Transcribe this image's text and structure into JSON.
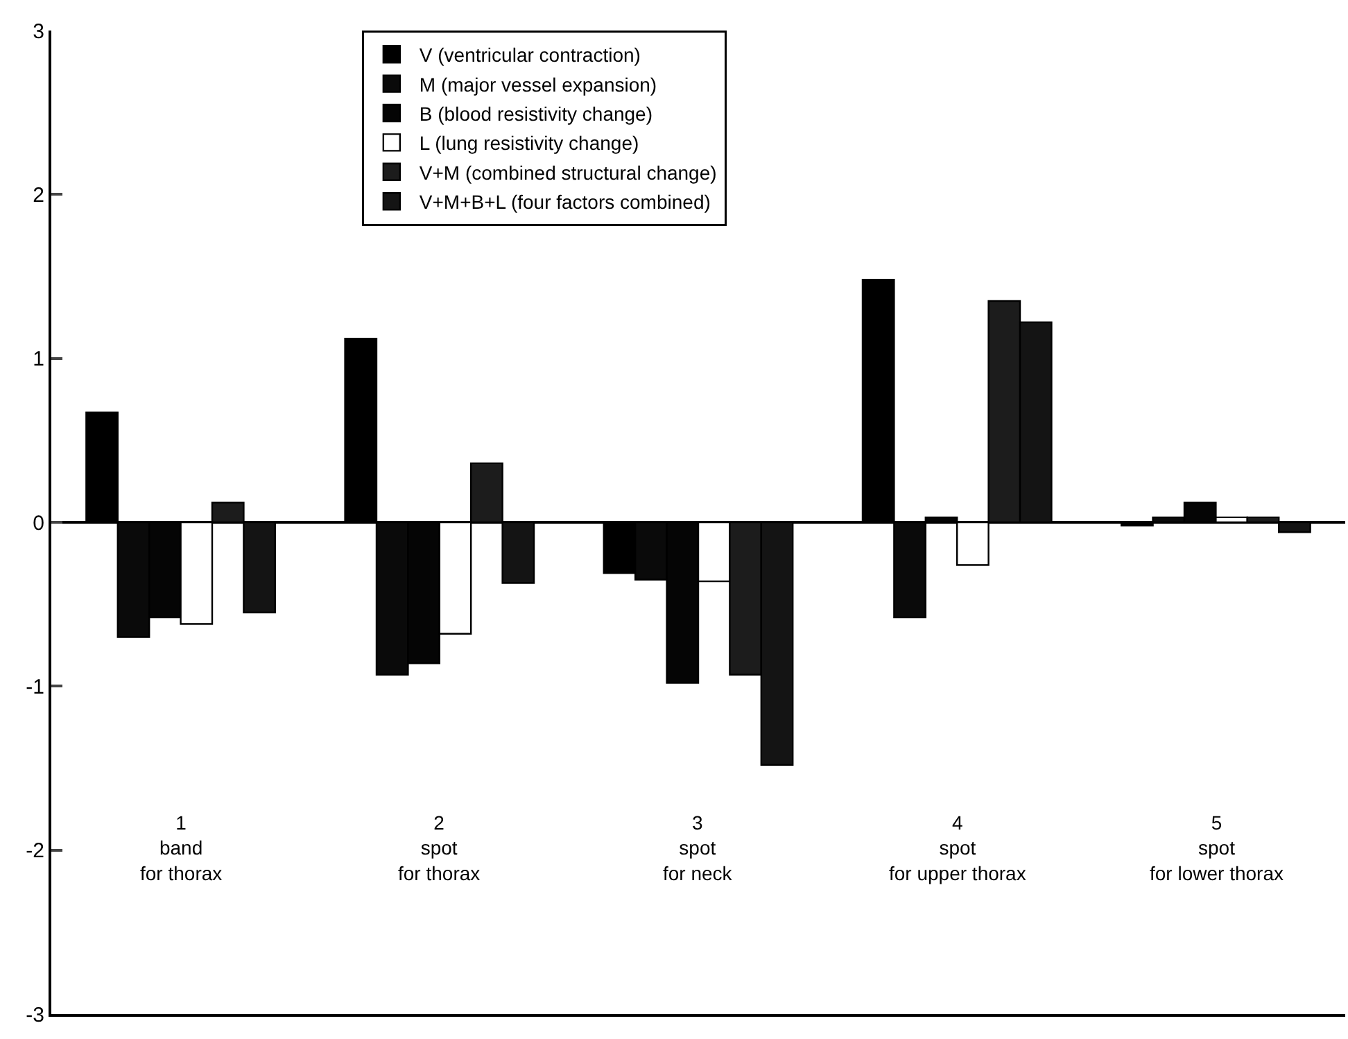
{
  "chart_data": {
    "type": "bar",
    "categories": [
      "1\nband\nfor thorax",
      "2\nspot\nfor thorax",
      "3\nspot\nfor neck",
      "4\nspot\nfor upper thorax",
      "5\nspot\nfor lower thorax"
    ],
    "series": [
      {
        "name": "V (ventricular contraction)",
        "color": "#000000",
        "values": [
          0.67,
          1.12,
          -0.31,
          1.48,
          -0.02
        ]
      },
      {
        "name": "M (major vessel expansion)",
        "color": "#0a0a0a",
        "values": [
          -0.7,
          -0.93,
          -0.35,
          -0.58,
          0.03
        ]
      },
      {
        "name": "B (blood resistivity change)",
        "color": "#050505",
        "values": [
          -0.58,
          -0.86,
          -0.98,
          0.03,
          0.12
        ]
      },
      {
        "name": "L (lung resistivity change)",
        "color": "#ffffff",
        "values": [
          -0.62,
          -0.68,
          -0.36,
          -0.26,
          0.03
        ]
      },
      {
        "name": "V+M (combined structural change)",
        "color": "#1c1c1c",
        "values": [
          0.12,
          0.36,
          -0.93,
          1.35,
          0.03
        ]
      },
      {
        "name": "V+M+B+L (four factors combined)",
        "color": "#141414",
        "values": [
          -0.55,
          -0.37,
          -1.48,
          1.22,
          -0.06
        ]
      }
    ],
    "ylim": [
      -3,
      3
    ],
    "yticks": [
      -3,
      -2,
      -1,
      0,
      1,
      2,
      3
    ],
    "ref_lines": [
      {
        "axis": "y",
        "value": 0,
        "color": "#000000"
      }
    ],
    "grid": false,
    "legend": "top"
  }
}
